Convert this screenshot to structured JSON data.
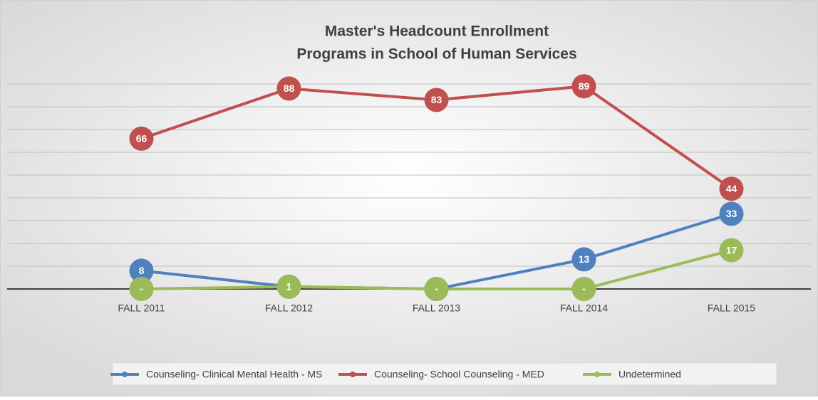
{
  "chart_data": {
    "type": "line",
    "title": "Master's Headcount Enrollment",
    "subtitle": "Programs in School of Human Services",
    "categories": [
      "FALL 2011",
      "FALL 2012",
      "FALL 2013",
      "FALL 2014",
      "FALL 2015"
    ],
    "series": [
      {
        "name": "Counseling- Clinical Mental Health - MS",
        "color": "#4f81bd",
        "values": [
          8,
          1,
          0,
          13,
          33
        ],
        "value_labels": [
          "8",
          "1",
          "-",
          "13",
          "33"
        ]
      },
      {
        "name": "Counseling- School Counseling - MED",
        "color": "#c0504d",
        "values": [
          66,
          88,
          83,
          89,
          44
        ]
      },
      {
        "name": "Undetermined",
        "color": "#9bbb59",
        "values": [
          0,
          1,
          0,
          0,
          17
        ],
        "value_labels": [
          "-",
          "1",
          "-",
          "-",
          "17"
        ]
      }
    ],
    "ylim": [
      0,
      90
    ],
    "yticks": [
      0,
      10,
      20,
      30,
      40,
      50,
      60,
      70,
      80,
      90
    ],
    "grid": true,
    "legend": "bottom"
  }
}
